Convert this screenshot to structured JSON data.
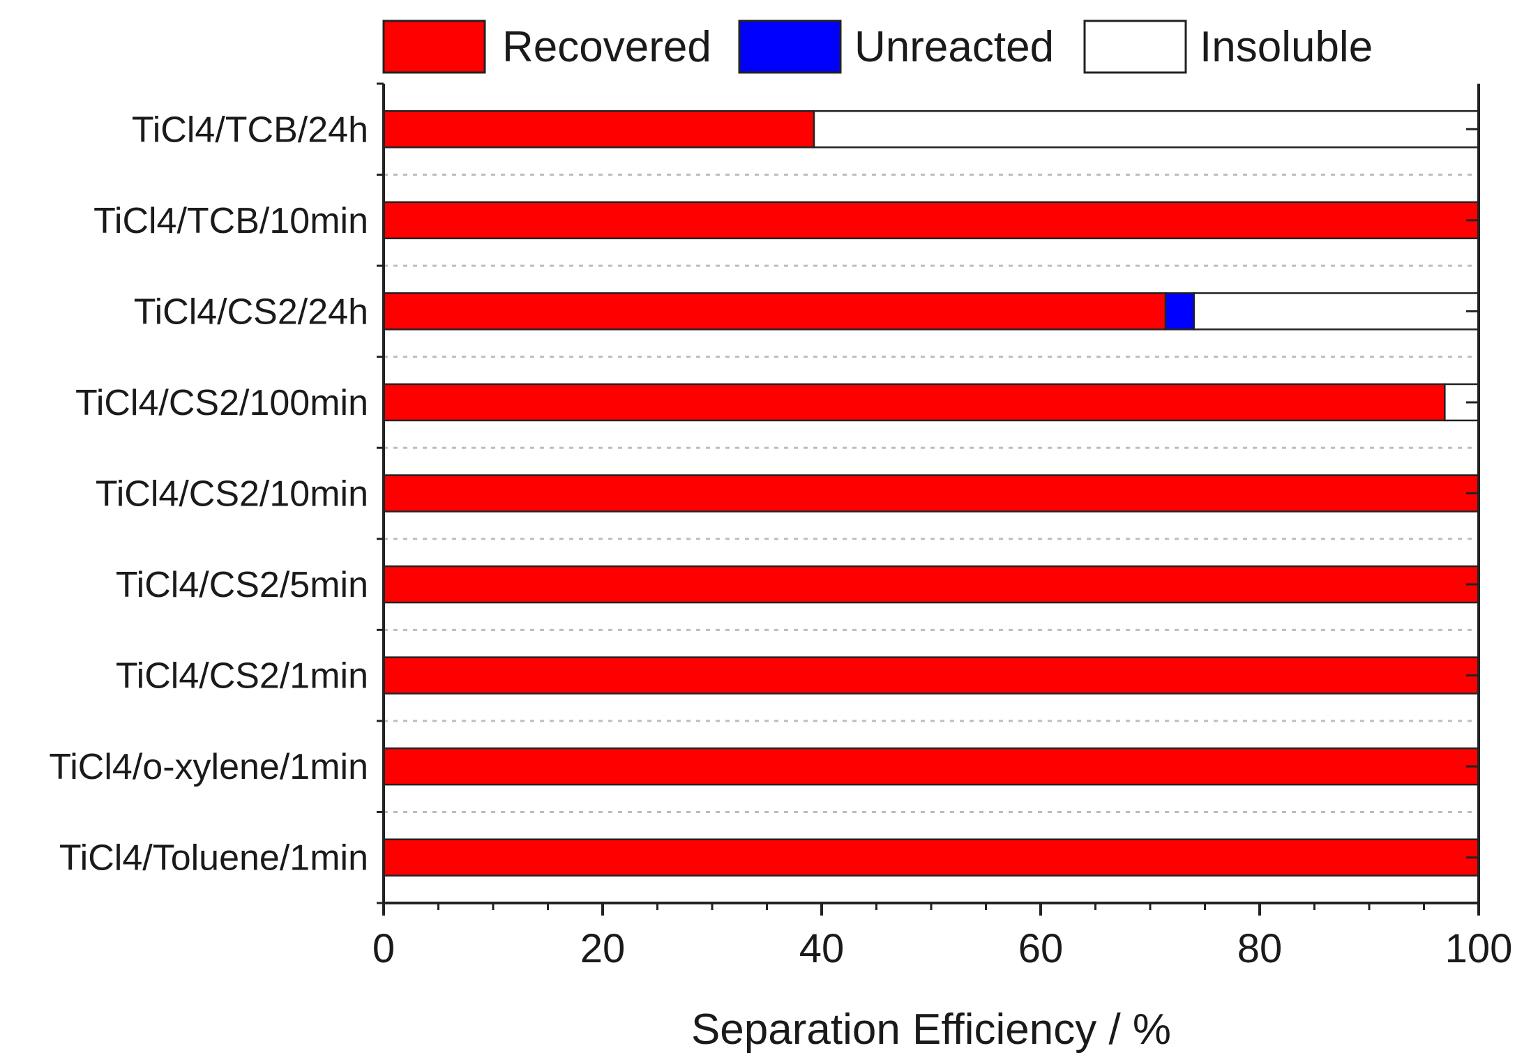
{
  "chart_data": {
    "type": "bar",
    "orientation": "horizontal",
    "stacked": true,
    "title": "",
    "xlabel": "Separation Efficiency / %",
    "ylabel": "",
    "xlim": [
      0,
      100
    ],
    "x_ticks": [
      "0",
      "20",
      "40",
      "60",
      "80",
      "100"
    ],
    "legend_position": "top",
    "grid": "dotted horizontal gridlines between categories",
    "categories": [
      "TiCl4/TCB/24h",
      "TiCl4/TCB/10min",
      "TiCl4/CS2/24h",
      "TiCl4/CS2/100min",
      "TiCl4/CS2/10min",
      "TiCl4/CS2/5min",
      "TiCl4/CS2/1min",
      "TiCl4/o-xylene/1min",
      "TiCl4/Toluene/1min"
    ],
    "series": [
      {
        "name": "Recovered",
        "color": "#ff0000",
        "values": [
          39.3,
          100,
          71.4,
          96.9,
          100,
          100,
          100,
          100,
          100
        ]
      },
      {
        "name": "Unreacted",
        "color": "#0000ff",
        "values": [
          0,
          0,
          2.6,
          0,
          0,
          0,
          0,
          0,
          0
        ]
      },
      {
        "name": "Insoluble",
        "color": "#ffffff",
        "values": [
          60.7,
          0,
          26.0,
          3.1,
          0,
          0,
          0,
          0,
          0
        ]
      }
    ]
  }
}
